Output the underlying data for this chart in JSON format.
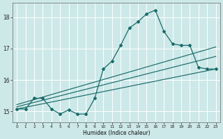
{
  "xlabel": "Humidex (Indice chaleur)",
  "background_color": "#cde8e8",
  "grid_color": "#ffffff",
  "line_color": "#1a6b6b",
  "xlim": [
    -0.5,
    23.5
  ],
  "ylim": [
    14.65,
    18.45
  ],
  "yticks": [
    15,
    16,
    17,
    18
  ],
  "xticks": [
    0,
    1,
    2,
    3,
    4,
    5,
    6,
    7,
    8,
    9,
    10,
    11,
    12,
    13,
    14,
    15,
    16,
    17,
    18,
    19,
    20,
    21,
    22,
    23
  ],
  "series1_x": [
    0,
    1,
    2,
    3,
    4,
    5,
    6,
    7,
    8,
    9,
    10,
    11,
    12,
    13,
    14,
    15,
    16,
    17,
    18,
    19,
    20,
    21,
    22,
    23
  ],
  "series1_y": [
    15.08,
    15.08,
    15.42,
    15.42,
    15.08,
    14.92,
    15.05,
    14.92,
    14.92,
    15.42,
    16.35,
    16.6,
    17.1,
    17.65,
    17.85,
    18.1,
    18.22,
    17.55,
    17.15,
    17.1,
    17.1,
    16.4,
    16.35,
    16.35
  ],
  "line2_x": [
    0,
    23
  ],
  "line2_y": [
    15.08,
    16.35
  ],
  "line3_x": [
    0,
    23
  ],
  "line3_y": [
    15.15,
    16.75
  ],
  "line4_x": [
    0,
    23
  ],
  "line4_y": [
    15.22,
    17.05
  ]
}
